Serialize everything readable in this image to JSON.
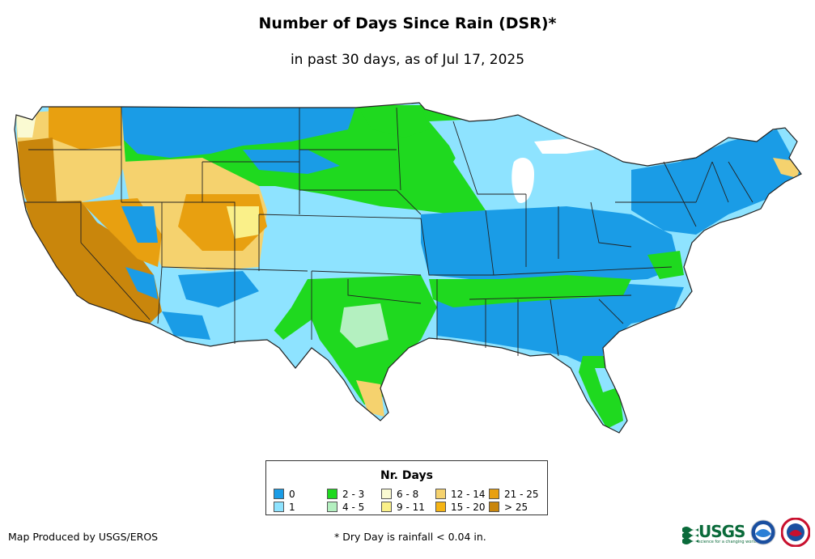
{
  "title": "Number of Days Since Rain (DSR)*",
  "subtitle": "in past 30 days, as of Jul 17, 2025",
  "legend": {
    "title": "Nr. Days",
    "items": [
      {
        "label": "0",
        "color": "#1a9ce6"
      },
      {
        "label": "1",
        "color": "#8ee3ff"
      },
      {
        "label": "2 - 3",
        "color": "#1fd91f"
      },
      {
        "label": "4 - 5",
        "color": "#b4f0c0"
      },
      {
        "label": "6 - 8",
        "color": "#fafad2"
      },
      {
        "label": "9 - 11",
        "color": "#faf089"
      },
      {
        "label": "12 - 14",
        "color": "#f5d26e"
      },
      {
        "label": "15 - 20",
        "color": "#f5b414"
      },
      {
        "label": "21 - 25",
        "color": "#e8a010"
      },
      {
        "label": "> 25",
        "color": "#c9860c"
      }
    ]
  },
  "footer": {
    "credit": "Map Produced by USGS/EROS",
    "note": "* Dry Day is rainfall < 0.04 in."
  },
  "logos": {
    "usgs_text": "USGS",
    "usgs_tagline": "science for a changing world"
  }
}
